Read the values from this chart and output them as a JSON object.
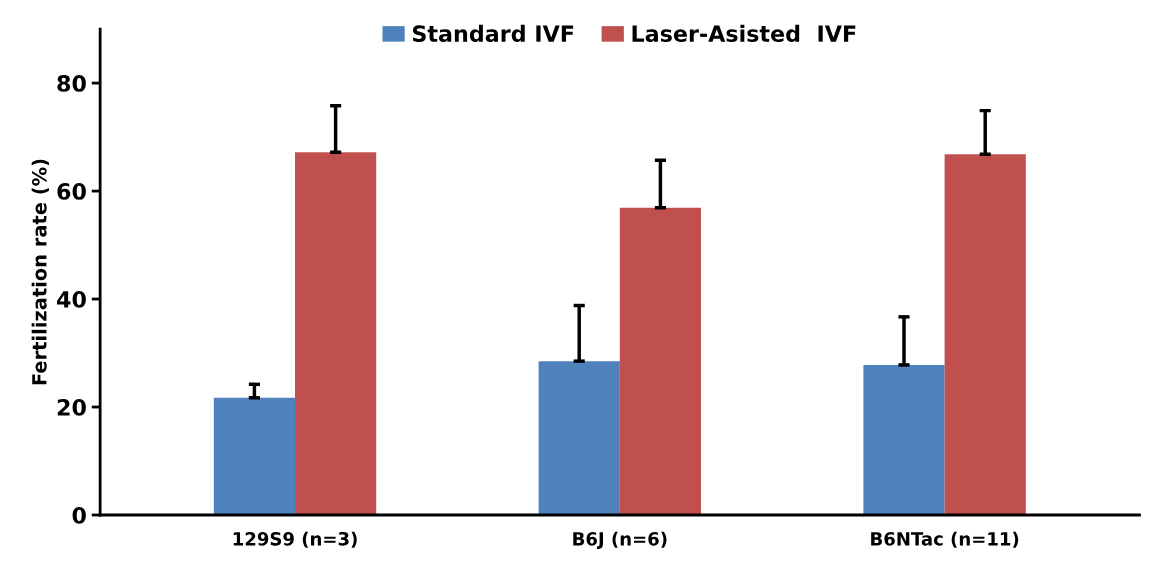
{
  "chart_data": {
    "type": "bar",
    "ylabel": "Fertilization rate (%)",
    "categories": [
      "129S9 (n=3)",
      "B6J (n=6)",
      "B6NTac (n=11)"
    ],
    "series": [
      {
        "name": "Standard IVF",
        "color": "#4f81bd",
        "values": [
          21.7,
          28.5,
          27.8
        ],
        "errors": [
          [
            21.7,
            24.2
          ],
          [
            28.5,
            38.8
          ],
          [
            27.8,
            36.7
          ]
        ]
      },
      {
        "name": "Laser-Asisted  IVF",
        "color": "#c0504d",
        "values": [
          67.2,
          56.9,
          66.8
        ],
        "errors": [
          [
            67.2,
            75.8
          ],
          [
            56.9,
            65.7
          ],
          [
            66.8,
            74.9
          ]
        ]
      }
    ],
    "ylim": [
      0,
      90
    ],
    "yticks": [
      0,
      20,
      40,
      60,
      80
    ],
    "grid": false,
    "legend": "top"
  }
}
